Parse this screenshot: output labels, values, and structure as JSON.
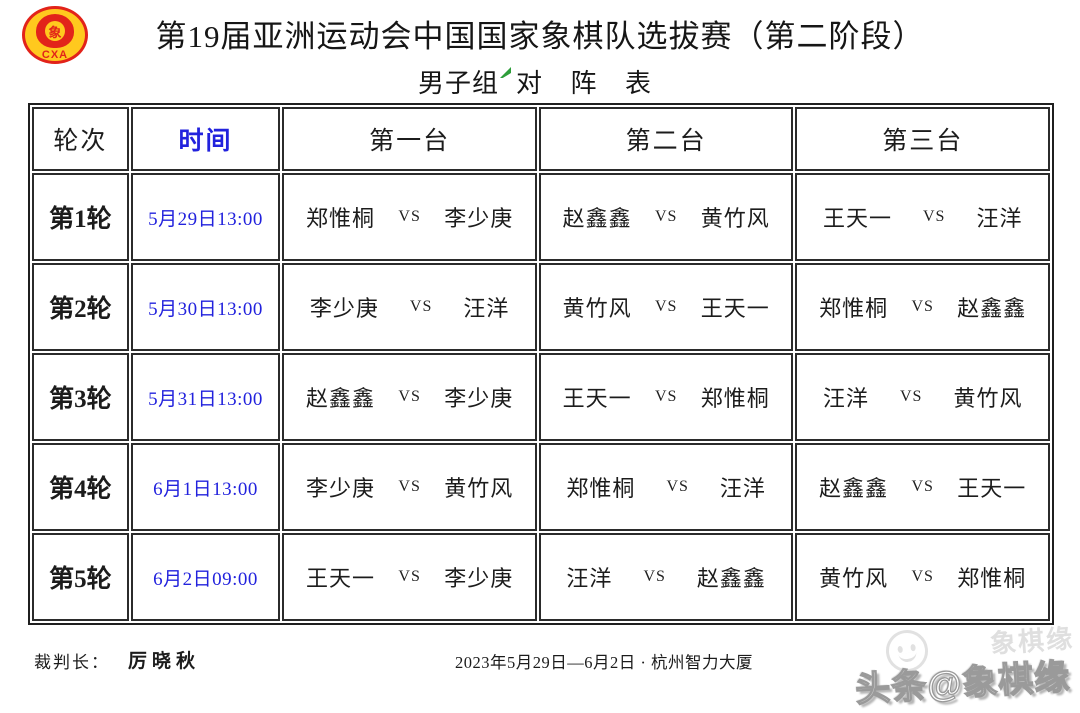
{
  "page": {
    "title": "第19届亚洲运动会中国国家象棋队选拔赛（第二阶段）",
    "subtitle_group": "男子组",
    "subtitle_label": "对 阵 表",
    "logo_piece_char": "象",
    "logo_cxa": "CXA"
  },
  "colors": {
    "accent_blue": "#2222dd",
    "logo_red": "#e2231a",
    "logo_yellow": "#ffc91e",
    "caret_green": "#2e9e3a"
  },
  "table": {
    "headers": [
      "轮次",
      "时间",
      "第一台",
      "第二台",
      "第三台"
    ],
    "vs_label": "VS",
    "rows": [
      {
        "round": "第1轮",
        "time": "5月29日13:00",
        "matches": [
          {
            "p1": "郑惟桐",
            "p2": "李少庚"
          },
          {
            "p1": "赵鑫鑫",
            "p2": "黄竹风"
          },
          {
            "p1": "王天一",
            "p2": "汪洋"
          }
        ]
      },
      {
        "round": "第2轮",
        "time": "5月30日13:00",
        "matches": [
          {
            "p1": "李少庚",
            "p2": "汪洋"
          },
          {
            "p1": "黄竹风",
            "p2": "王天一"
          },
          {
            "p1": "郑惟桐",
            "p2": "赵鑫鑫"
          }
        ]
      },
      {
        "round": "第3轮",
        "time": "5月31日13:00",
        "matches": [
          {
            "p1": "赵鑫鑫",
            "p2": "李少庚"
          },
          {
            "p1": "王天一",
            "p2": "郑惟桐"
          },
          {
            "p1": "汪洋",
            "p2": "黄竹风"
          }
        ]
      },
      {
        "round": "第4轮",
        "time": "6月1日13:00",
        "matches": [
          {
            "p1": "李少庚",
            "p2": "黄竹风"
          },
          {
            "p1": "郑惟桐",
            "p2": "汪洋"
          },
          {
            "p1": "赵鑫鑫",
            "p2": "王天一"
          }
        ]
      },
      {
        "round": "第5轮",
        "time": "6月2日09:00",
        "matches": [
          {
            "p1": "王天一",
            "p2": "李少庚"
          },
          {
            "p1": "汪洋",
            "p2": "赵鑫鑫"
          },
          {
            "p1": "黄竹风",
            "p2": "郑惟桐"
          }
        ]
      }
    ]
  },
  "footer": {
    "referee_label": "裁判长：",
    "referee_name": "厉晓秋",
    "event_info": "2023年5月29日—6月2日 · 杭州智力大厦"
  },
  "watermark": {
    "main": "头条@象棋缘",
    "ghost": "象棋缘"
  }
}
